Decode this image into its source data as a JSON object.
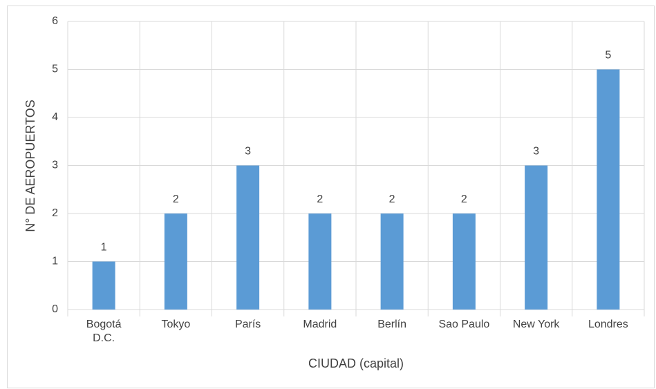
{
  "chart_data": {
    "type": "bar",
    "categories": [
      "Bogotá D.C.",
      "Tokyo",
      "París",
      "Madrid",
      "Berlín",
      "Sao Paulo",
      "New York",
      "Londres"
    ],
    "values": [
      1,
      2,
      3,
      2,
      2,
      2,
      3,
      5
    ],
    "color": "#5b9bd5",
    "x_label": "CIUDAD (capital)",
    "y_label": "N° DE AEROPUERTOS",
    "ylim": [
      0,
      6
    ],
    "yticks": [
      0,
      1,
      2,
      3,
      4,
      5,
      6
    ],
    "grid": true
  }
}
